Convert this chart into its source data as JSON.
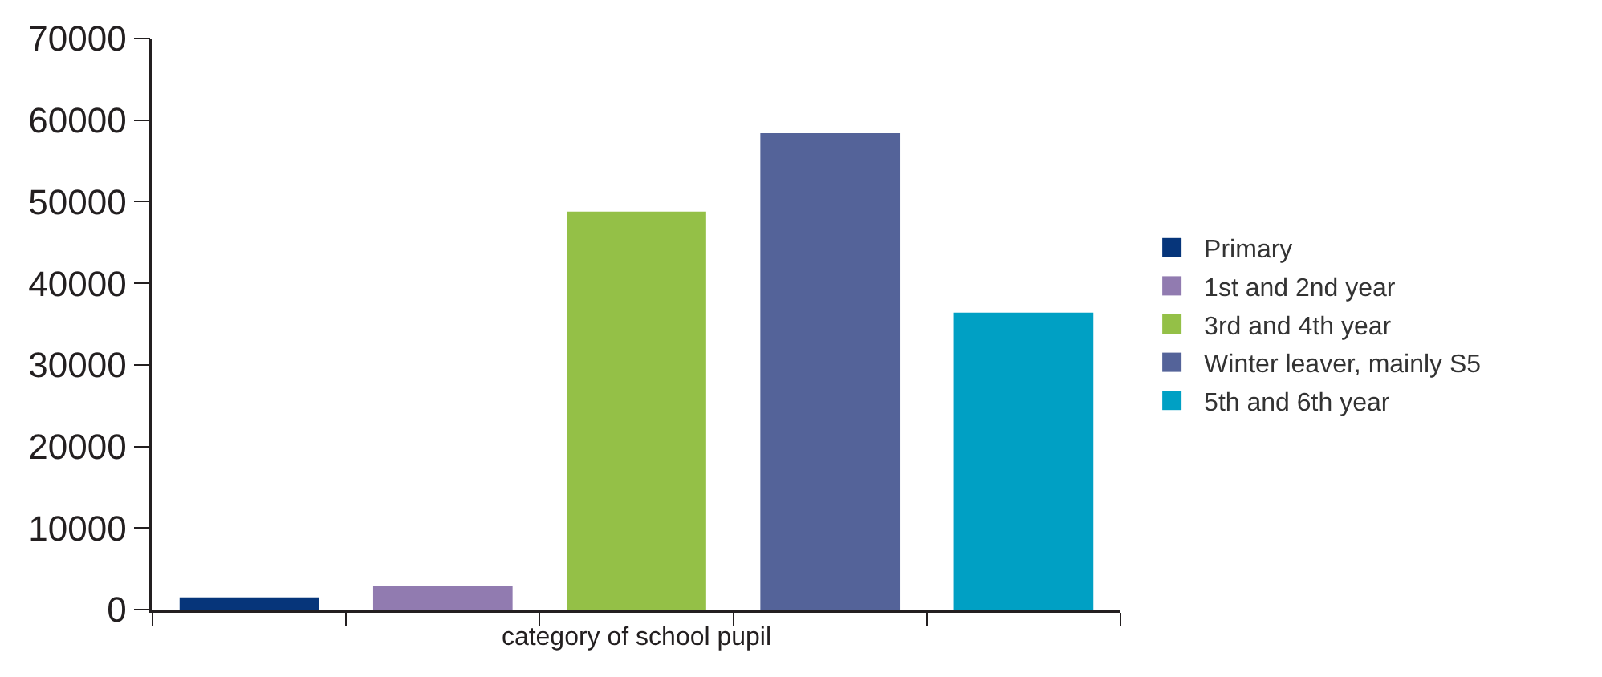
{
  "chart_data": {
    "type": "bar",
    "xlabel": "category of school pupil",
    "categories": [
      null,
      null,
      null,
      null,
      null
    ],
    "series": [
      {
        "name": "Primary",
        "color": "#06357a",
        "values": [
          1500,
          null,
          null,
          null,
          null
        ]
      },
      {
        "name": "1st and 2nd year",
        "color": "#917bb0",
        "values": [
          null,
          2900,
          null,
          null,
          null
        ]
      },
      {
        "name": "3rd and 4th year",
        "color": "#94c047",
        "values": [
          null,
          null,
          48800,
          null,
          null
        ]
      },
      {
        "name": "Winter leaver, mainly S5",
        "color": "#546399",
        "values": [
          null,
          null,
          null,
          58400,
          null
        ]
      },
      {
        "name": "5th and 6th year",
        "color": "#00a0c4",
        "values": [
          null,
          null,
          null,
          null,
          36400
        ]
      }
    ],
    "ylim": [
      0,
      70000
    ],
    "yticks": [
      0,
      10000,
      20000,
      30000,
      40000,
      50000,
      60000,
      70000
    ],
    "legend": "right",
    "tick_labels": "y"
  }
}
